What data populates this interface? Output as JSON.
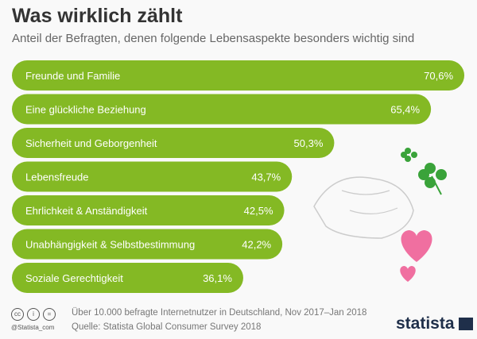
{
  "chart_data": {
    "type": "bar",
    "orientation": "horizontal",
    "title": "Was wirklich zählt",
    "subtitle": "Anteil der Befragten, denen folgende Lebensaspekte besonders wichtig sind",
    "categories": [
      "Freunde und Familie",
      "Eine glückliche Beziehung",
      "Sicherheit und Geborgenheit",
      "Lebensfreude",
      "Ehrlichkeit & Anständigkeit",
      "Unabhängigkeit & Selbstbestimmung",
      "Soziale Gerechtigkeit"
    ],
    "values": [
      70.6,
      65.4,
      50.3,
      43.7,
      42.5,
      42.2,
      36.1
    ],
    "value_labels": [
      "70,6%",
      "65,4%",
      "50,3%",
      "43,7%",
      "42,5%",
      "42,2%",
      "36,1%"
    ],
    "unit": "%",
    "color": "#84b924",
    "grid": false
  },
  "footer": {
    "note": "Über 10.000 befragte Internetnutzer in Deutschland, Nov 2017–Jan 2018",
    "source": "Quelle: Statista Global Consumer Survey 2018",
    "handle": "@Statista_com",
    "logo": "statista",
    "license_icons": [
      "cc",
      "by",
      "nd"
    ]
  }
}
